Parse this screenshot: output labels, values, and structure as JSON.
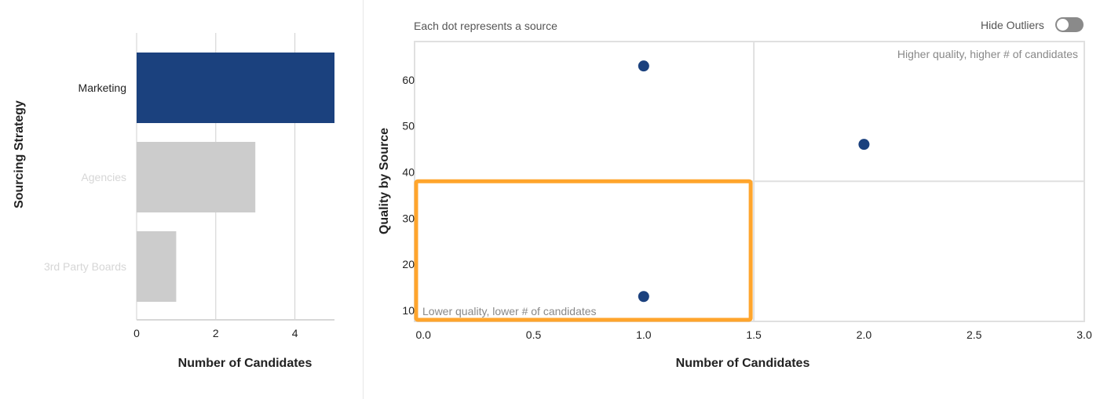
{
  "chart_data": [
    {
      "type": "bar",
      "orientation": "horizontal",
      "categories": [
        "Marketing",
        "Agencies",
        "3rd Party Boards"
      ],
      "values": [
        5,
        3,
        1
      ],
      "highlighted": "Marketing",
      "xlabel": "Number of Candidates",
      "ylabel": "Sourcing Strategy",
      "xlim": [
        0,
        5
      ],
      "xticks": [
        "0",
        "2",
        "4"
      ],
      "grid": true,
      "colors": {
        "highlight": "#1b417e",
        "muted": "#cccccc",
        "muted_label": "#d6d6d6"
      }
    },
    {
      "type": "scatter",
      "note": "Each dot represents a source",
      "points": [
        {
          "x": 1,
          "y": 63
        },
        {
          "x": 2,
          "y": 46
        },
        {
          "x": 1,
          "y": 13
        }
      ],
      "xlabel": "Number of Candidates",
      "ylabel": "Quality by Source",
      "xlim": [
        -0.04,
        3.0
      ],
      "ylim": [
        7.6,
        68.3
      ],
      "xticks": [
        "0.0",
        "0.5",
        "1.0",
        "1.5",
        "2.0",
        "2.5",
        "3.0"
      ],
      "yticks": [
        "10",
        "20",
        "30",
        "40",
        "50",
        "60"
      ],
      "quadrant_split": {
        "x": 1.5,
        "y": 38
      },
      "quadrant_labels": {
        "top_right": "Higher quality, higher # of candidates",
        "bottom_left": "Lower quality, lower # of candidates"
      },
      "highlight_box": "bottom-left quadrant",
      "colors": {
        "point": "#1b417e",
        "highlight_box": "#ffa52c"
      }
    }
  ],
  "controls": {
    "hide_outliers_label": "Hide Outliers",
    "hide_outliers_on": false
  }
}
